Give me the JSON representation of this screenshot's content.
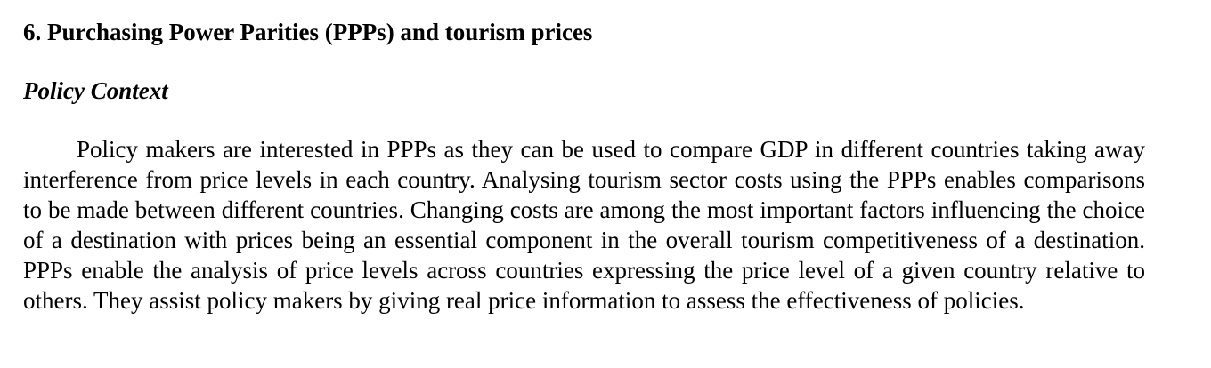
{
  "section": {
    "heading": "6. Purchasing Power Parities (PPPs) and tourism prices",
    "subheading": "Policy Context",
    "paragraph": "Policy makers are interested in PPPs as they can be used to compare GDP in different countries taking away interference from price levels in each country. Analysing tourism sector costs using the PPPs enables comparisons to be made between different countries. Changing costs are among the most important factors influencing the choice of a destination with prices being an essential component in the overall tourism competitiveness of a destination. PPPs enable the analysis of price levels across countries expressing the price level of a given country relative to others. They assist policy makers by giving real price information to assess the effectiveness of policies."
  }
}
